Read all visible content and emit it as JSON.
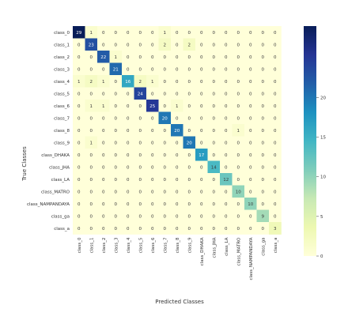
{
  "chart_data": {
    "type": "heatmap",
    "title": "",
    "xlabel": "Predicted Classes",
    "ylabel": "True Classes",
    "categories": [
      "class_0",
      "class_1",
      "class_2",
      "class_3",
      "class_4",
      "class_5",
      "class_6",
      "class_7",
      "class_8",
      "class_9",
      "class_DHAKA",
      "class_JHA",
      "class_LA",
      "class_MATRO",
      "class_NAMPANDAYA",
      "class_ga",
      "class_a"
    ],
    "matrix": [
      [
        29,
        1,
        0,
        0,
        0,
        0,
        0,
        1,
        0,
        0,
        0,
        0,
        0,
        0,
        0,
        0,
        0
      ],
      [
        0,
        23,
        0,
        0,
        0,
        0,
        0,
        2,
        0,
        2,
        0,
        0,
        0,
        0,
        0,
        0,
        0
      ],
      [
        0,
        0,
        22,
        1,
        0,
        0,
        0,
        0,
        0,
        0,
        0,
        0,
        0,
        0,
        0,
        0,
        0
      ],
      [
        0,
        0,
        0,
        21,
        0,
        0,
        0,
        0,
        0,
        0,
        0,
        0,
        0,
        0,
        0,
        0,
        0
      ],
      [
        1,
        2,
        1,
        0,
        16,
        2,
        1,
        0,
        0,
        0,
        0,
        0,
        0,
        0,
        0,
        0,
        0
      ],
      [
        0,
        0,
        0,
        0,
        0,
        24,
        0,
        0,
        0,
        0,
        0,
        0,
        0,
        0,
        0,
        0,
        0
      ],
      [
        0,
        1,
        1,
        0,
        0,
        0,
        25,
        0,
        1,
        0,
        0,
        0,
        0,
        0,
        0,
        0,
        0
      ],
      [
        0,
        0,
        0,
        0,
        0,
        0,
        0,
        20,
        0,
        0,
        0,
        0,
        0,
        0,
        0,
        0,
        0
      ],
      [
        0,
        0,
        0,
        0,
        0,
        0,
        0,
        0,
        20,
        0,
        0,
        0,
        0,
        1,
        0,
        0,
        0
      ],
      [
        0,
        1,
        0,
        0,
        0,
        0,
        0,
        0,
        0,
        20,
        0,
        0,
        0,
        0,
        0,
        0,
        0
      ],
      [
        0,
        0,
        0,
        0,
        0,
        0,
        0,
        0,
        0,
        0,
        17,
        0,
        0,
        0,
        0,
        0,
        0
      ],
      [
        0,
        0,
        0,
        0,
        0,
        0,
        0,
        0,
        0,
        0,
        0,
        14,
        0,
        0,
        0,
        0,
        0
      ],
      [
        0,
        0,
        0,
        0,
        0,
        0,
        0,
        0,
        0,
        0,
        0,
        0,
        12,
        0,
        0,
        0,
        0
      ],
      [
        0,
        0,
        0,
        0,
        0,
        0,
        0,
        0,
        0,
        0,
        0,
        0,
        0,
        10,
        0,
        0,
        0
      ],
      [
        0,
        0,
        0,
        0,
        0,
        0,
        0,
        0,
        0,
        0,
        0,
        0,
        0,
        0,
        10,
        0,
        0
      ],
      [
        0,
        0,
        0,
        0,
        0,
        0,
        0,
        0,
        0,
        0,
        0,
        0,
        0,
        0,
        0,
        9,
        0
      ],
      [
        0,
        0,
        0,
        0,
        0,
        0,
        0,
        0,
        0,
        0,
        0,
        0,
        0,
        0,
        0,
        0,
        3
      ]
    ],
    "colorscale": [
      "#ffffd9",
      "#edf8b1",
      "#c7e9b4",
      "#7fcdbb",
      "#41b6c4",
      "#1d91c0",
      "#225ea8",
      "#253494",
      "#081d58"
    ],
    "vmin": 0,
    "vmax": 29,
    "colorbar_ticks": [
      0,
      5,
      10,
      15,
      20
    ]
  }
}
